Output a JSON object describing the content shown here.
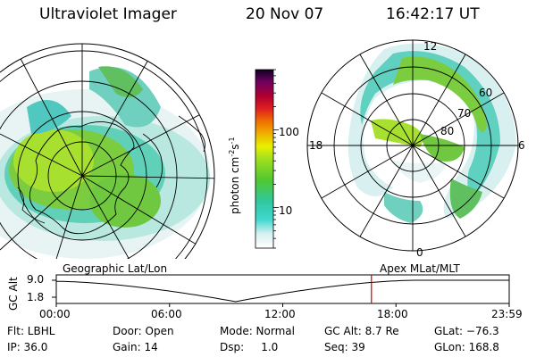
{
  "header": {
    "instrument": "Ultraviolet Imager",
    "date": "20 Nov 07",
    "time": "16:42:17 UT"
  },
  "colorbar": {
    "unit_main": "photon cm",
    "unit_exp1": "-2",
    "unit_mid": "s",
    "unit_exp2": "-1",
    "ticks": [
      {
        "value": 10,
        "label": "10"
      },
      {
        "value": 100,
        "label": "100"
      }
    ],
    "range": [
      3,
      600
    ],
    "scale": "log"
  },
  "polar_plot": {
    "mlt_labels": {
      "top": "12",
      "bottom": "0",
      "left": "18",
      "right": "6"
    },
    "lat_labels": [
      "60",
      "70",
      "80"
    ]
  },
  "timeline": {
    "left_caption": "Geographic Lat/Lon",
    "right_caption": "Apex MLat/MLT",
    "axis_label": "GC Alt",
    "y_ticks": [
      "9.0",
      "1.8"
    ],
    "x_ticks": [
      "00:00",
      "06:00",
      "12:00",
      "18:00",
      "23:59"
    ],
    "current_time_hours": 16.7,
    "current_marker_color": "#cc0000"
  },
  "info": {
    "flt": "Flt: LBHL",
    "ip": "IP: 36.0",
    "door": "Door: Open",
    "gain": "Gain: 14",
    "mode": "Mode: Normal",
    "dsp": "Dsp:     1.0",
    "gc_alt": "GC Alt: 8.7 Re",
    "seq": "Seq: 39",
    "glat": "GLat: −76.3",
    "glon": "GLon: 168.8"
  }
}
